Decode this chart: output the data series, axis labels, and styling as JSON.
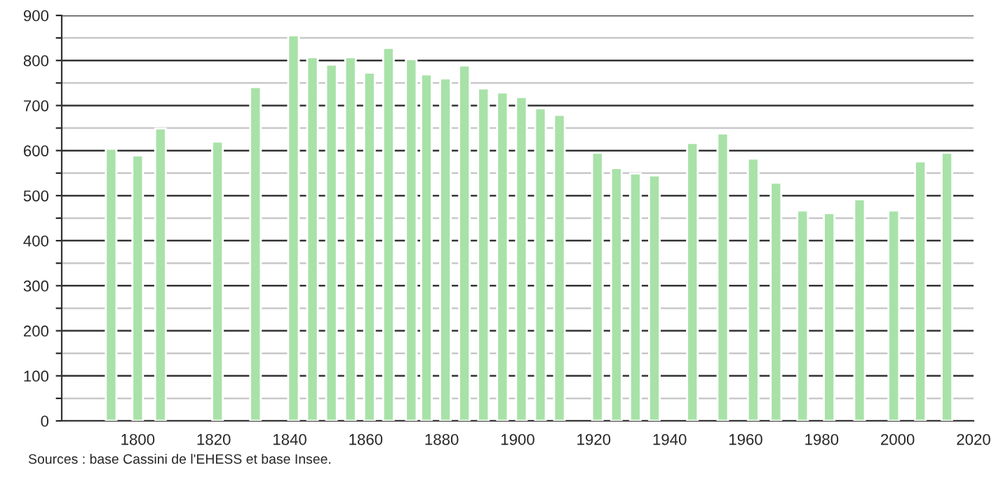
{
  "chart_data": {
    "type": "bar",
    "color": "#a8e2a8",
    "x": [
      1793,
      1800,
      1806,
      1821,
      1831,
      1841,
      1846,
      1851,
      1856,
      1861,
      1866,
      1872,
      1876,
      1881,
      1886,
      1891,
      1896,
      1901,
      1906,
      1911,
      1921,
      1926,
      1931,
      1936,
      1946,
      1954,
      1962,
      1968,
      1975,
      1982,
      1990,
      1999,
      2006,
      2013
    ],
    "values": [
      604,
      589,
      649,
      620,
      741,
      856,
      807,
      791,
      807,
      773,
      828,
      803,
      769,
      760,
      789,
      738,
      729,
      719,
      694,
      679,
      595,
      561,
      549,
      545,
      617,
      638,
      582,
      529,
      467,
      461,
      492,
      467,
      576,
      595
    ],
    "xlim": [
      1780,
      2020
    ],
    "xticks": [
      1800,
      1820,
      1840,
      1860,
      1880,
      1900,
      1920,
      1940,
      1960,
      1980,
      2000,
      2020
    ],
    "ylim": [
      0,
      900
    ],
    "yticks": [
      0,
      {
        "value": 50,
        "label": null
      },
      100,
      {
        "value": 150,
        "label": null
      },
      200,
      {
        "value": 250,
        "label": null
      },
      300,
      {
        "value": 350,
        "label": null
      },
      400,
      {
        "value": 450,
        "label": null
      },
      500,
      {
        "value": 550,
        "label": null
      },
      600,
      {
        "value": 650,
        "label": null
      },
      700,
      {
        "value": 750,
        "label": null
      },
      800,
      {
        "value": 850,
        "label": null
      },
      900
    ],
    "grid": "y",
    "annotations": [
      "Sources : base Cassini de l'EHESS et base Insee."
    ]
  }
}
